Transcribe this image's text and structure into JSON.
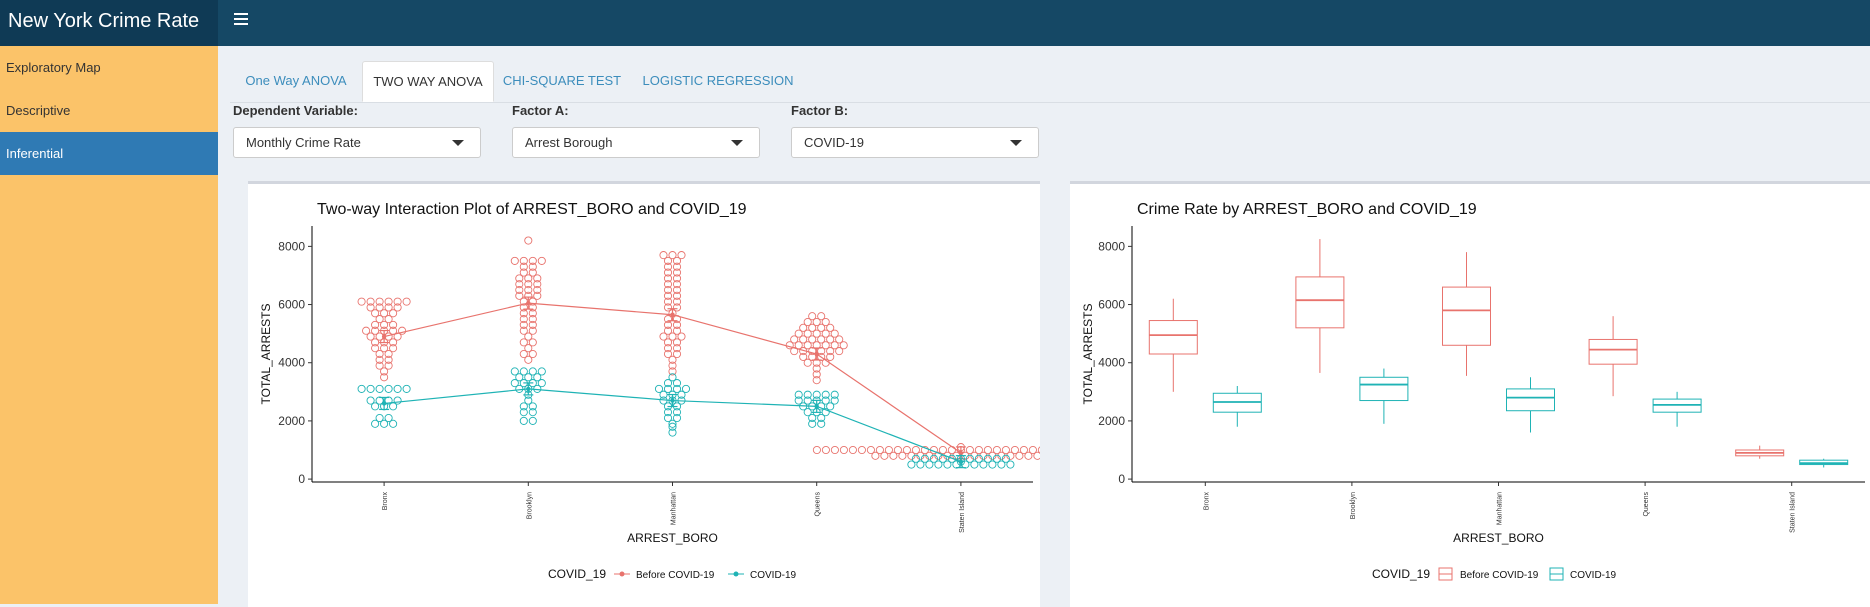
{
  "header": {
    "title": "New York Crime Rate",
    "menu_icon": "hamburger-icon"
  },
  "sidebar": {
    "items": [
      {
        "label": "Exploratory Map",
        "active": false
      },
      {
        "label": "Descriptive",
        "active": false
      },
      {
        "label": "Inferential",
        "active": true
      }
    ]
  },
  "tabs": [
    {
      "label": "One Way ANOVA",
      "active": false
    },
    {
      "label": "TWO WAY ANOVA",
      "active": true
    },
    {
      "label": "CHI-SQUARE TEST",
      "active": false
    },
    {
      "label": "LOGISTIC REGRESSION",
      "active": false
    }
  ],
  "controls": {
    "dependent": {
      "label": "Dependent Variable:",
      "value": "Monthly Crime Rate"
    },
    "factor_a": {
      "label": "Factor A:",
      "value": "Arrest Borough"
    },
    "factor_b": {
      "label": "Factor B:",
      "value": "COVID-19"
    }
  },
  "colors": {
    "before": "#e8736d",
    "covid": "#1fb3b5"
  },
  "chart_data": [
    {
      "type": "scatter",
      "title": "Two-way Interaction Plot of ARREST_BORO and COVID_19",
      "xlabel": "ARREST_BORO",
      "ylabel": "TOTAL_ARRESTS",
      "categories": [
        "Bronx",
        "Brooklyn",
        "Manhattan",
        "Queens",
        "Staten Island"
      ],
      "yticks": [
        0,
        2000,
        4000,
        6000,
        8000
      ],
      "ylim": [
        -100,
        8700
      ],
      "legend": {
        "title": "COVID_19",
        "position": "bottom"
      },
      "series": [
        {
          "name": "Before COVID-19",
          "means": [
            4900,
            6050,
            5650,
            4300,
            900
          ],
          "points": [
            [
              6100,
              6100,
              6100,
              6100,
              6100,
              6100,
              5900,
              5900,
              5900,
              5900,
              5700,
              5700,
              5700,
              5500,
              5500,
              5300,
              5300,
              5300,
              5100,
              5100,
              5100,
              5100,
              5100,
              4900,
              4900,
              4900,
              4900,
              4700,
              4700,
              4700,
              4500,
              4500,
              4500,
              4300,
              4300,
              4100,
              4100,
              3900,
              3900,
              3700,
              3500
            ],
            [
              8200,
              7500,
              7500,
              7500,
              7500,
              7300,
              7300,
              7100,
              7100,
              6900,
              6900,
              6900,
              6700,
              6700,
              6700,
              6500,
              6500,
              6500,
              6300,
              6300,
              6300,
              6100,
              6100,
              5900,
              5900,
              5700,
              5700,
              5500,
              5500,
              5300,
              5300,
              5100,
              5100,
              4900,
              4700,
              4700,
              4500,
              4300,
              4300,
              4100
            ],
            [
              7700,
              7700,
              7700,
              7500,
              7500,
              7300,
              7300,
              7100,
              7100,
              6900,
              6900,
              6700,
              6700,
              6500,
              6500,
              6300,
              6300,
              6100,
              6100,
              5900,
              5900,
              5700,
              5500,
              5500,
              5300,
              5300,
              5100,
              5100,
              4900,
              4900,
              4900,
              4700,
              4700,
              4500,
              4500,
              4300,
              4300,
              4100,
              3900,
              3700
            ],
            [
              5600,
              5600,
              5400,
              5400,
              5400,
              5200,
              5200,
              5200,
              5200,
              5000,
              5000,
              5000,
              5000,
              5000,
              4800,
              4800,
              4800,
              4800,
              4800,
              4800,
              4600,
              4600,
              4600,
              4600,
              4600,
              4600,
              4600,
              4400,
              4400,
              4400,
              4400,
              4400,
              4400,
              4200,
              4200,
              4200,
              4200,
              4000,
              4000,
              4000,
              3800,
              3600,
              3400
            ],
            [
              1000,
              1000,
              1000,
              1000,
              1000,
              1000,
              1000,
              1000,
              1000,
              1000,
              1000,
              1000,
              1000,
              1000,
              1000,
              1000,
              1000,
              1000,
              1000,
              1000,
              1000,
              1000,
              1000,
              1000,
              1000,
              1000,
              1000,
              1000,
              1000,
              1000,
              1000,
              1000,
              1000,
              1100,
              800,
              800,
              800,
              800,
              800,
              800,
              800,
              800,
              800,
              800,
              800,
              800,
              800,
              800,
              800,
              800,
              800,
              800,
              800,
              800
            ]
          ]
        },
        {
          "name": "COVID-19",
          "means": [
            2600,
            3100,
            2700,
            2500,
            600
          ],
          "points": [
            [
              3100,
              3100,
              3100,
              3100,
              3100,
              3100,
              2700,
              2700,
              2700,
              2700,
              2500,
              2500,
              2500,
              2100,
              2100,
              1900,
              1900,
              1900
            ],
            [
              3700,
              3700,
              3700,
              3700,
              3500,
              3500,
              3500,
              3300,
              3300,
              3300,
              3300,
              3100,
              3100,
              3100,
              2900,
              2700,
              2500,
              2500,
              2300,
              2300,
              2000,
              2000
            ],
            [
              3500,
              3300,
              3300,
              3100,
              3100,
              3100,
              3100,
              2900,
              2900,
              2900,
              2700,
              2700,
              2700,
              2500,
              2500,
              2300,
              2300,
              2100,
              2100,
              1900,
              1800,
              1600
            ],
            [
              2900,
              2900,
              2900,
              2900,
              2900,
              2700,
              2700,
              2700,
              2700,
              2700,
              2500,
              2500,
              2500,
              2500,
              2300,
              2300,
              2300,
              2100,
              2100,
              1900,
              1900
            ],
            [
              700,
              700,
              700,
              700,
              700,
              700,
              700,
              700,
              700,
              700,
              700,
              600,
              500,
              500,
              500,
              500,
              500,
              500,
              500,
              500,
              500,
              500,
              500,
              500
            ]
          ]
        }
      ]
    },
    {
      "type": "box",
      "title": "Crime Rate by ARREST_BORO and COVID_19",
      "xlabel": "ARREST_BORO",
      "ylabel": "TOTAL_ARRESTS",
      "categories": [
        "Bronx",
        "Brooklyn",
        "Manhattan",
        "Queens",
        "Staten Island"
      ],
      "yticks": [
        0,
        2000,
        4000,
        6000,
        8000
      ],
      "ylim": [
        -100,
        8700
      ],
      "legend": {
        "title": "COVID_19",
        "position": "bottom"
      },
      "series": [
        {
          "name": "Before COVID-19",
          "boxes": [
            {
              "min": 3000,
              "q1": 4300,
              "median": 4950,
              "q3": 5450,
              "max": 6200
            },
            {
              "min": 3650,
              "q1": 5200,
              "median": 6150,
              "q3": 6950,
              "max": 8250
            },
            {
              "min": 3550,
              "q1": 4600,
              "median": 5800,
              "q3": 6600,
              "max": 7800
            },
            {
              "min": 2850,
              "q1": 3950,
              "median": 4450,
              "q3": 4800,
              "max": 5600
            },
            {
              "min": 700,
              "q1": 800,
              "median": 900,
              "q3": 1000,
              "max": 1150
            }
          ]
        },
        {
          "name": "COVID-19",
          "boxes": [
            {
              "min": 1800,
              "q1": 2300,
              "median": 2650,
              "q3": 2950,
              "max": 3200
            },
            {
              "min": 1900,
              "q1": 2700,
              "median": 3250,
              "q3": 3500,
              "max": 3800
            },
            {
              "min": 1600,
              "q1": 2350,
              "median": 2800,
              "q3": 3100,
              "max": 3500
            },
            {
              "min": 1800,
              "q1": 2300,
              "median": 2550,
              "q3": 2750,
              "max": 3000
            },
            {
              "min": 400,
              "q1": 500,
              "median": 550,
              "q3": 650,
              "max": 700
            }
          ]
        }
      ]
    }
  ]
}
